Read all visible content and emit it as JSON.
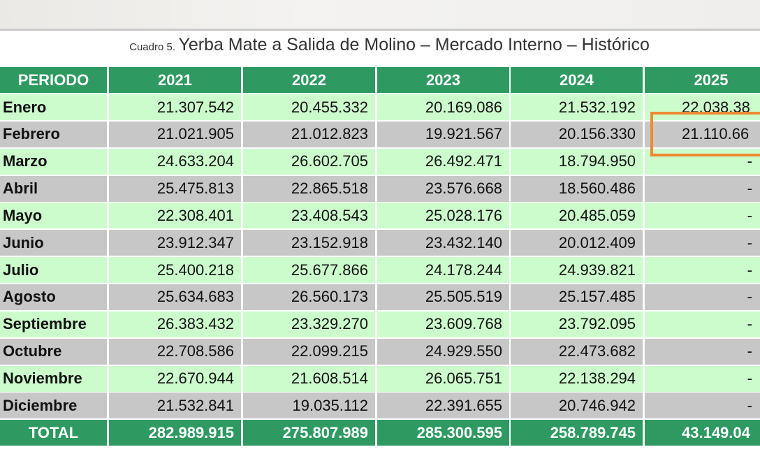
{
  "title": {
    "prefix": "Cuadro 5.",
    "main": "Yerba Mate a Salida de Molino  – Mercado Interno – Histórico"
  },
  "colors": {
    "header": "#2e9a62",
    "row_light": "#ccfccc",
    "row_gray": "#c7c7c7",
    "highlight": "#ee8a32"
  },
  "headers": [
    "PERIODO",
    "2021",
    "2022",
    "2023",
    "2024",
    "2025"
  ],
  "rows": [
    [
      "Enero",
      "21.307.542",
      "20.455.332",
      "20.169.086",
      "21.532.192",
      "22.038.38"
    ],
    [
      "Febrero",
      "21.021.905",
      "21.012.823",
      "19.921.567",
      "20.156.330",
      "21.110.66"
    ],
    [
      "Marzo",
      "24.633.204",
      "26.602.705",
      "26.492.471",
      "18.794.950",
      "-"
    ],
    [
      "Abril",
      "25.475.813",
      "22.865.518",
      "23.576.668",
      "18.560.486",
      "-"
    ],
    [
      "Mayo",
      "22.308.401",
      "23.408.543",
      "25.028.176",
      "20.485.059",
      "-"
    ],
    [
      "Junio",
      "23.912.347",
      "23.152.918",
      "23.432.140",
      "20.012.409",
      "-"
    ],
    [
      "Julio",
      "25.400.218",
      "25.677.866",
      "24.178.244",
      "24.939.821",
      "-"
    ],
    [
      "Agosto",
      "25.634.683",
      "26.560.173",
      "25.505.519",
      "25.157.485",
      "-"
    ],
    [
      "Septiembre",
      "26.383.432",
      "23.329.270",
      "23.609.768",
      "23.792.095",
      "-"
    ],
    [
      "Octubre",
      "22.708.586",
      "22.099.215",
      "24.929.550",
      "22.473.682",
      "-"
    ],
    [
      "Noviembre",
      "22.670.944",
      "21.608.514",
      "26.065.751",
      "22.138.294",
      "-"
    ],
    [
      "Diciembre",
      "21.532.841",
      "19.035.112",
      "22.391.655",
      "20.746.942",
      "-"
    ]
  ],
  "total": [
    "TOTAL",
    "282.989.915",
    "275.807.989",
    "285.300.595",
    "258.789.745",
    "43.149.04"
  ],
  "highlighted_cell": {
    "row": "Febrero",
    "column": "2025"
  }
}
